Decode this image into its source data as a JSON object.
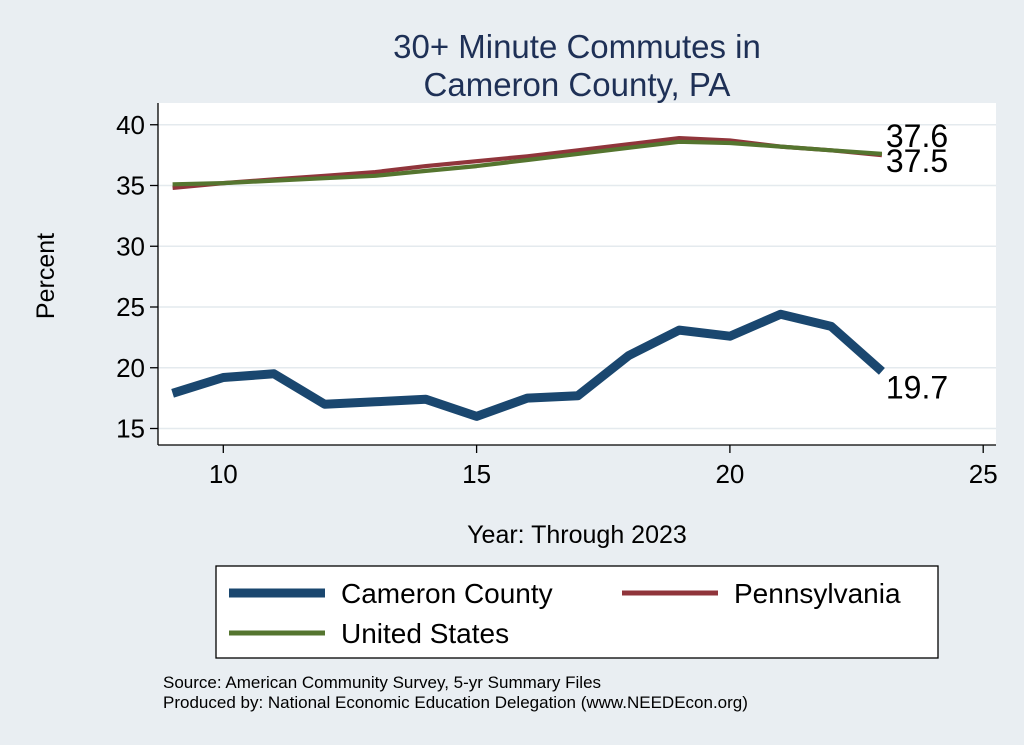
{
  "chart_data": {
    "type": "line",
    "title": [
      "30+ Minute Commutes in",
      "Cameron County, PA"
    ],
    "xlabel": "Year: Through 2023",
    "ylabel": "Percent",
    "xlim": [
      8.75,
      25.25
    ],
    "ylim": [
      14,
      41.5
    ],
    "xticks": [
      10,
      15,
      20,
      25
    ],
    "yticks": [
      15,
      20,
      25,
      30,
      35,
      40
    ],
    "grid": true,
    "legend_position": "bottom",
    "x": [
      9,
      10,
      11,
      12,
      13,
      14,
      15,
      16,
      17,
      18,
      19,
      20,
      21,
      22,
      23
    ],
    "series": [
      {
        "name": "Cameron County",
        "color": "#1a476f",
        "values": [
          17.9,
          19.2,
          19.5,
          17.0,
          17.2,
          17.4,
          16.0,
          17.5,
          17.7,
          21.0,
          23.1,
          22.6,
          24.4,
          23.4,
          19.7
        ],
        "end_label": "19.7"
      },
      {
        "name": "Pennsylvania",
        "color": "#90353b",
        "values": [
          34.8,
          35.2,
          35.5,
          35.8,
          36.1,
          36.6,
          37.0,
          37.4,
          37.9,
          38.4,
          38.9,
          38.7,
          38.2,
          37.9,
          37.5
        ],
        "end_label": "37.5"
      },
      {
        "name": "United States",
        "color": "#55752f",
        "values": [
          35.1,
          35.2,
          35.4,
          35.6,
          35.8,
          36.2,
          36.6,
          37.1,
          37.6,
          38.1,
          38.6,
          38.5,
          38.2,
          37.9,
          37.6
        ],
        "end_label": "37.6"
      }
    ]
  },
  "footer": {
    "source_line": "Source: American Community Survey, 5-yr Summary Files",
    "produced_line": "Produced by: National Economic Education Delegation (www.NEEDEcon.org)"
  }
}
